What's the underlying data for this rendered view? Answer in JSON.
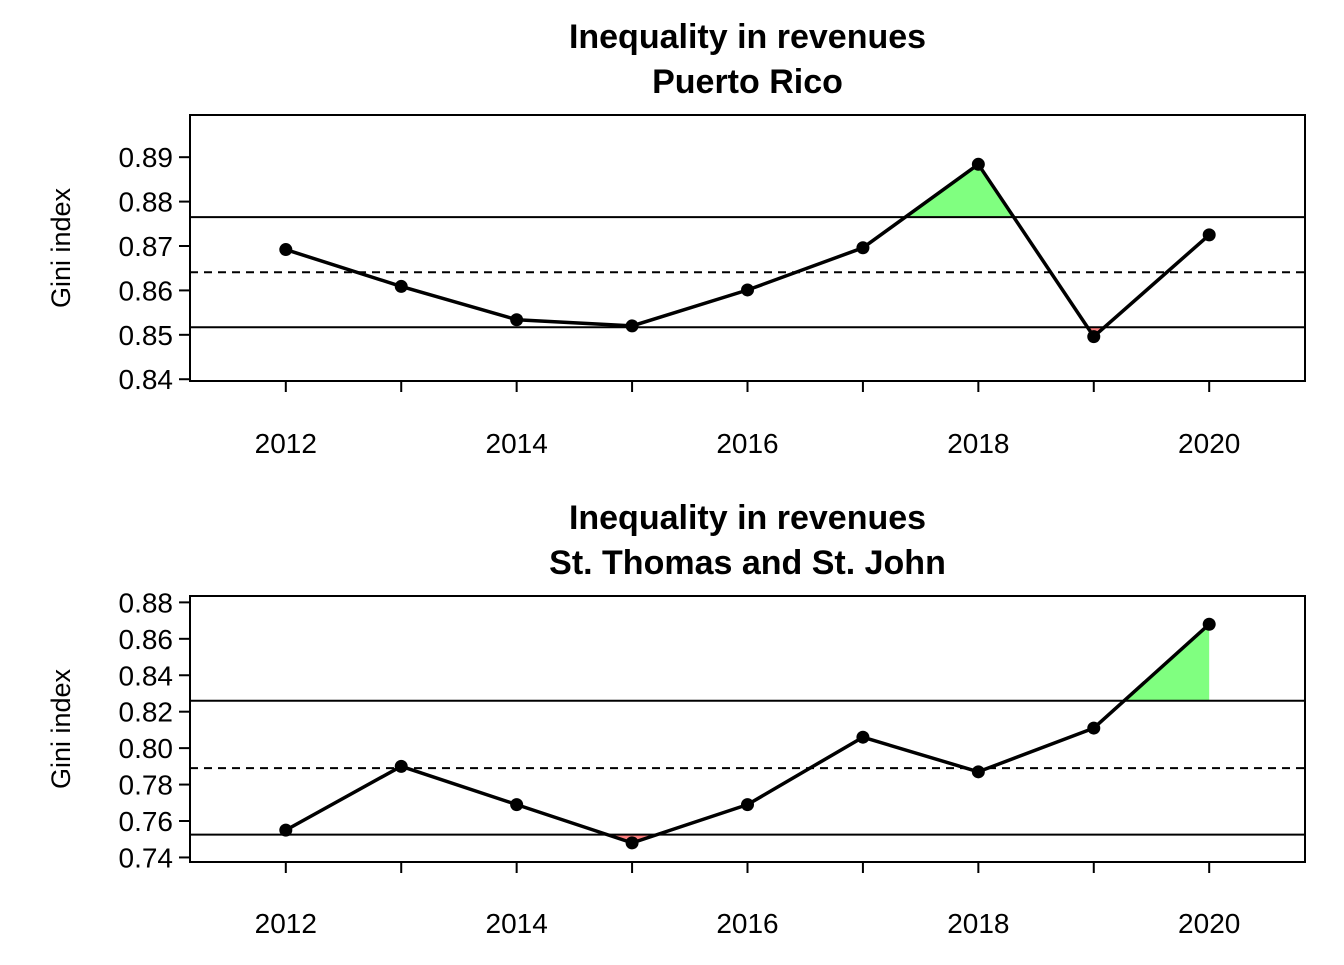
{
  "chart_data": [
    {
      "type": "line",
      "title": "Inequality in revenues",
      "subtitle": "Puerto Rico",
      "xlabel": "",
      "ylabel": "Gini index",
      "x": [
        2012,
        2013,
        2014,
        2015,
        2016,
        2017,
        2018,
        2019,
        2020
      ],
      "values": [
        0.8692,
        0.8609,
        0.8534,
        0.852,
        0.8601,
        0.8696,
        0.8884,
        0.8496,
        0.8725
      ],
      "mean": 0.8641,
      "upper_limit": 0.8765,
      "lower_limit": 0.8517,
      "xlim": [
        2011.17,
        2020.83
      ],
      "ylim": [
        0.8396,
        0.8995
      ],
      "xticks": [
        "2012",
        "2014",
        "2016",
        "2018",
        "2020"
      ],
      "yticks": [
        "0.84",
        "0.85",
        "0.86",
        "0.87",
        "0.88",
        "0.89"
      ],
      "colors": {
        "above": "#80ff80",
        "below": "#ff8080",
        "line": "#000000"
      },
      "grid": false
    },
    {
      "type": "line",
      "title": "Inequality in revenues",
      "subtitle": "St. Thomas and St. John",
      "xlabel": "",
      "ylabel": "Gini index",
      "x": [
        2012,
        2013,
        2014,
        2015,
        2016,
        2017,
        2018,
        2019,
        2020
      ],
      "values": [
        0.755,
        0.79,
        0.769,
        0.748,
        0.769,
        0.806,
        0.787,
        0.811,
        0.868
      ],
      "mean": 0.789,
      "upper_limit": 0.826,
      "lower_limit": 0.7525,
      "xlim": [
        2011.17,
        2020.83
      ],
      "ylim": [
        0.7375,
        0.8835
      ],
      "xticks": [
        "2012",
        "2014",
        "2016",
        "2018",
        "2020"
      ],
      "yticks": [
        "0.74",
        "0.76",
        "0.78",
        "0.80",
        "0.82",
        "0.84",
        "0.86",
        "0.88"
      ],
      "colors": {
        "above": "#80ff80",
        "below": "#ff8080",
        "line": "#000000"
      },
      "grid": false
    }
  ]
}
